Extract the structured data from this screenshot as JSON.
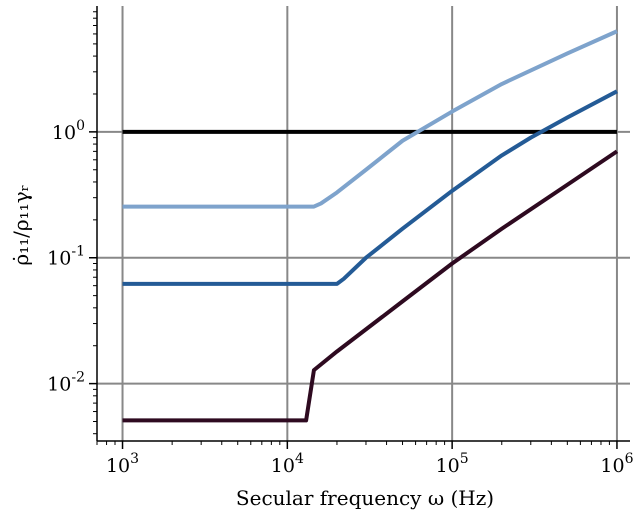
{
  "chart_data": {
    "type": "line",
    "title": "",
    "xlabel": "Secular frequency ω (Hz)",
    "ylabel": "ρ̇₁₁/ρ₁₁γᵣ",
    "xscale": "log",
    "yscale": "log",
    "xlim": [
      700,
      1200000
    ],
    "ylim": [
      0.0035,
      10
    ],
    "grid": true,
    "legend": "none",
    "x_ticks": [
      {
        "value": 1000,
        "base": "10",
        "exp": "3"
      },
      {
        "value": 10000,
        "base": "10",
        "exp": "4"
      },
      {
        "value": 100000,
        "base": "10",
        "exp": "5"
      },
      {
        "value": 1000000,
        "base": "10",
        "exp": "6"
      }
    ],
    "y_ticks": [
      {
        "value": 0.01,
        "base": "10",
        "exp": "-2"
      },
      {
        "value": 0.1,
        "base": "10",
        "exp": "-1"
      },
      {
        "value": 1,
        "base": "10",
        "exp": "0"
      }
    ],
    "series": [
      {
        "color": "#000000",
        "x": [
          1000,
          1000000
        ],
        "y": [
          1.0,
          1.0
        ]
      },
      {
        "color": "#7ea3cc",
        "x": [
          1000,
          14500,
          16000,
          20000,
          30000,
          50000,
          100000,
          200000,
          500000,
          1000000
        ],
        "y": [
          0.255,
          0.255,
          0.27,
          0.33,
          0.5,
          0.85,
          1.45,
          2.4,
          4.2,
          6.3
        ]
      },
      {
        "color": "#245b96",
        "x": [
          1000,
          20000,
          22000,
          30000,
          50000,
          100000,
          200000,
          300000,
          500000,
          1000000
        ],
        "y": [
          0.062,
          0.062,
          0.068,
          0.1,
          0.17,
          0.34,
          0.65,
          0.9,
          1.3,
          2.1
        ]
      },
      {
        "color": "#2e0a20",
        "x": [
          1000,
          13000,
          14500,
          20000,
          50000,
          100000,
          200000,
          500000,
          1000000
        ],
        "y": [
          0.0051,
          0.0051,
          0.0128,
          0.018,
          0.045,
          0.09,
          0.17,
          0.38,
          0.7
        ]
      }
    ]
  }
}
